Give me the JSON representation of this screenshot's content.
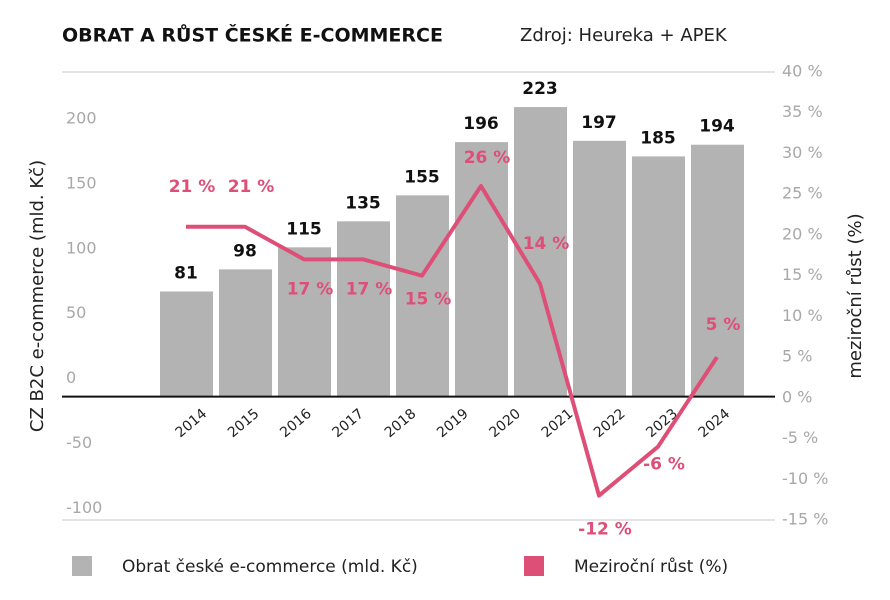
{
  "chart_data": {
    "type": "bar-line",
    "title": "OBRAT A RŮST ČESKÉ E-COMMERCE",
    "subtitle": "Zdroj: Heureka + APEK",
    "y_label": "CZ B2C e-commerce (mld. Kč)",
    "y2_label": "meziroční růst (%)",
    "categories": [
      "2014",
      "2015",
      "2016",
      "2017",
      "2018",
      "2019",
      "2020",
      "2021",
      "2022",
      "2023",
      "2024"
    ],
    "series": [
      {
        "name": "Obrat české e-commerce (mld. Kč)",
        "type": "bar",
        "color": "#b3b3b4",
        "values": [
          null,
          81,
          98,
          115,
          135,
          155,
          196,
          223,
          197,
          185,
          194
        ]
      },
      {
        "name": "Meziroční růst (%)",
        "type": "line",
        "axis": "y2",
        "color": "#de4f77",
        "values": [
          null,
          21,
          21,
          17,
          17,
          15,
          26,
          14,
          -12,
          -6,
          5
        ],
        "value_labels": [
          null,
          "21 %",
          "21 %",
          "17 %",
          "17 %",
          "15 %",
          "26 %",
          "14 %",
          "-12 %",
          "-6 %",
          "5 %"
        ]
      }
    ],
    "ylim": [
      -95,
      250
    ],
    "yticks": [
      -100,
      -50,
      0,
      50,
      100,
      150,
      200
    ],
    "y2lim": [
      -15,
      40
    ],
    "y2ticks": [
      {
        "value": -15,
        "label": "-15 %"
      },
      {
        "value": -10,
        "label": "-10 %"
      },
      {
        "value": -5,
        "label": "-5 %"
      },
      {
        "value": 0,
        "label": "0 %"
      },
      {
        "value": 5,
        "label": "5 %"
      },
      {
        "value": 10,
        "label": "10 %"
      },
      {
        "value": 15,
        "label": "15 %"
      },
      {
        "value": 20,
        "label": "20 %"
      },
      {
        "value": 25,
        "label": "25 %"
      },
      {
        "value": 30,
        "label": "30 %"
      },
      {
        "value": 35,
        "label": "35 %"
      },
      {
        "value": 40,
        "label": "40 %"
      }
    ],
    "legend": "bottom"
  }
}
